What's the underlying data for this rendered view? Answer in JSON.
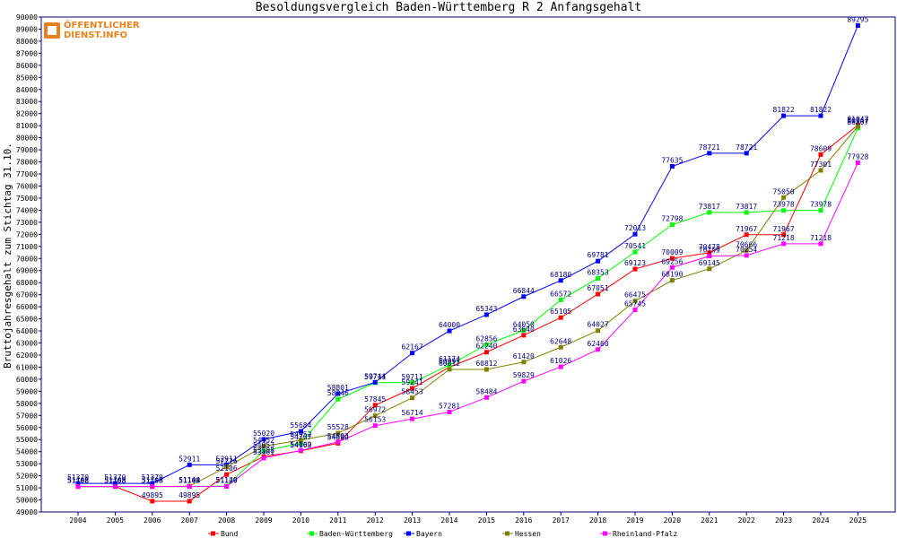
{
  "logo": {
    "line1": "ÖFFENTLICHER",
    "line2": "DIENST.INFO"
  },
  "chart_data": {
    "type": "line",
    "title": "Besoldungsvergleich Baden-Württemberg R 2 Anfangsgehalt",
    "xlabel": "",
    "ylabel": "Bruttojahresgehalt zum Stichtag 31.10.",
    "categories": [
      "2004",
      "2005",
      "2006",
      "2007",
      "2008",
      "2009",
      "2010",
      "2011",
      "2012",
      "2013",
      "2014",
      "2015",
      "2016",
      "2017",
      "2018",
      "2019",
      "2020",
      "2021",
      "2022",
      "2023",
      "2024",
      "2025"
    ],
    "ylim": [
      49000,
      90000
    ],
    "ytick_step": 1000,
    "grid": false,
    "legend_position": "bottom",
    "series": [
      {
        "name": "Bund",
        "color": "#ff0000",
        "values": [
          51108,
          51108,
          49895,
          49895,
          52106,
          53588,
          54069,
          54689,
          57845,
          59241,
          60997,
          62240,
          63640,
          65105,
          67051,
          69123,
          70009,
          70478,
          71967,
          71967,
          78609,
          81047
        ]
      },
      {
        "name": "Baden-Württemberg",
        "color": "#00ff00",
        "values": [
          51108,
          51108,
          51108,
          51108,
          51149,
          54053,
          54707,
          58346,
          59711,
          59711,
          61174,
          62856,
          64050,
          66572,
          68353,
          70541,
          72798,
          73817,
          73817,
          73978,
          73978,
          80807
        ]
      },
      {
        "name": "Bayern",
        "color": "#0000ff",
        "values": [
          51370,
          51370,
          51370,
          52911,
          52911,
          55020,
          55684,
          58801,
          59744,
          62167,
          64000,
          65343,
          66844,
          68180,
          69781,
          72013,
          77635,
          78721,
          78721,
          81822,
          81822,
          89295
        ]
      },
      {
        "name": "Hessen",
        "color": "#808000",
        "values": [
          51108,
          51108,
          51108,
          51144,
          52726,
          54452,
          54952,
          55528,
          56972,
          58453,
          60812,
          60812,
          61420,
          62648,
          64027,
          66475,
          68190,
          69145,
          70666,
          75050,
          77301,
          80947
        ]
      },
      {
        "name": "Rheinland-Pfalz",
        "color": "#ff00ff",
        "values": [
          51108,
          51108,
          51108,
          51108,
          51120,
          53461,
          54102,
          54803,
          56153,
          56714,
          57281,
          58484,
          59829,
          61026,
          62460,
          65745,
          69256,
          70199,
          70254,
          71218,
          71218,
          77928
        ]
      }
    ],
    "point_labels": [
      [
        "51108",
        "51108",
        "49895",
        "49895",
        "52106",
        "53588",
        "54069",
        "54689",
        "57845",
        "59241",
        "60997",
        "62240",
        "63640",
        "65105",
        "67051",
        "69123",
        "70009",
        "70478",
        "71967",
        "71967",
        "78609",
        "81047"
      ],
      [
        "51108",
        "51108",
        "51108",
        "51108",
        "51149",
        "54053",
        "54707",
        "58346",
        "59711",
        "59711",
        "61174",
        "62856",
        "64050",
        "66572",
        "68353",
        "70541",
        "72798",
        "73817",
        "73817",
        "73978",
        "73978",
        "80807"
      ],
      [
        "51370",
        "51370",
        "51370",
        "52911",
        "52911",
        "55020",
        "55684",
        "58801",
        "59744",
        "62167",
        "64000",
        "65343",
        "66844",
        "68180",
        "69781",
        "72013",
        "77635",
        "78721",
        "78721",
        "81822",
        "81822",
        "89295"
      ],
      [
        "51108",
        "51108",
        "51108",
        "51144",
        "52726",
        "54452",
        "54952",
        "55528",
        "56972",
        "58453",
        "60812",
        "60812",
        "61420",
        "62648",
        "64027",
        "66475",
        "68190",
        "69145",
        "70666",
        "75050",
        "77301",
        "80947"
      ],
      [
        "51108",
        "51108",
        "51108",
        "51108",
        "51120",
        "53461",
        "54102",
        "54803",
        "56153",
        "56714",
        "57281",
        "58484",
        "59829",
        "61026",
        "62460",
        "65745",
        "69256",
        "70199",
        "70254",
        "71218",
        "71218",
        "77928"
      ]
    ]
  }
}
